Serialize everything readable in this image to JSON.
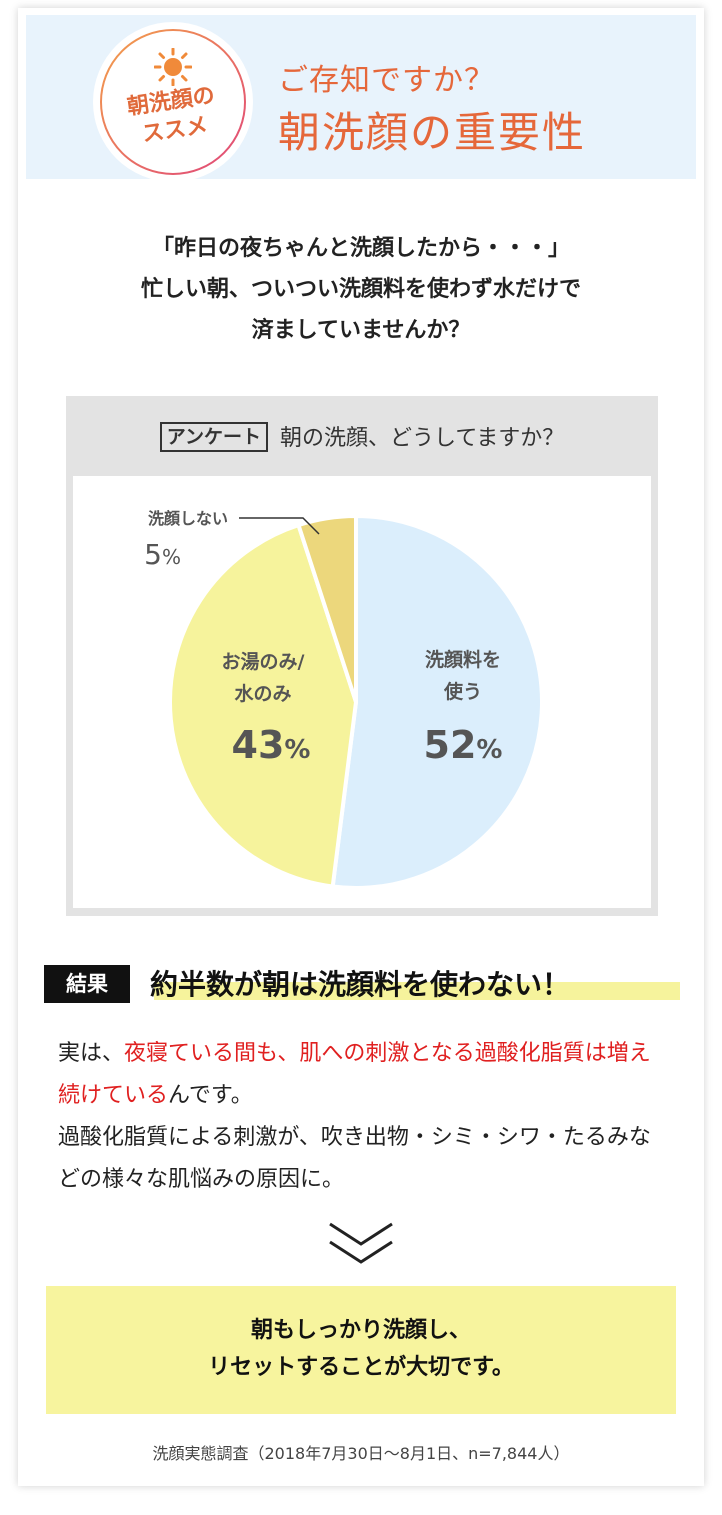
{
  "header": {
    "badge_line1": "朝洗顔の",
    "badge_line2": "ススメ",
    "subheading": "ご存知ですか？",
    "heading": "朝洗顔の重要性",
    "sun_icon": "sun-icon"
  },
  "intro": {
    "line1": "「昨日の夜ちゃんと洗顔したから・・・」",
    "line2": "忙しい朝、ついつい洗顔料を使わず水だけで",
    "line3": "済ましていませんか？"
  },
  "survey": {
    "tag": "アンケート",
    "question": "朝の洗顔、どうしてますか？"
  },
  "chart_data": {
    "type": "pie",
    "title": "",
    "slices": [
      {
        "label": "洗顔料を使う",
        "label_lines": [
          "洗顔料を",
          "使う"
        ],
        "value": 52,
        "value_text": "52",
        "color": "#dbeefc"
      },
      {
        "label": "お湯のみ/水のみ",
        "label_lines": [
          "お湯のみ/",
          "水のみ"
        ],
        "value": 43,
        "value_text": "43",
        "color": "#f6f39c"
      },
      {
        "label": "洗顔しない",
        "label_lines": [
          "洗顔しない"
        ],
        "value": 5,
        "value_text": "5",
        "color": "#ecd77c"
      }
    ],
    "unit": "%"
  },
  "result": {
    "tag": "結果",
    "text": "約半数が朝は洗顔料を使わない！"
  },
  "body": {
    "p1_plain_start": "実は、",
    "p1_red": "夜寝ている間も、肌への刺激となる過酸化脂質は増え続けている",
    "p1_plain_end": "んです。",
    "p2": "過酸化脂質による刺激が、吹き出物・シミ・シワ・たるみなどの様々な肌悩みの原因に。"
  },
  "cta": {
    "line1": "朝もしっかり洗顔し、",
    "line2": "リセットすることが大切です。"
  },
  "source": "洗顔実態調査（2018年7月30日〜8月1日、n=7,844人）",
  "colors": {
    "accent_orange": "#e5673a",
    "header_bg": "#e8f3fc",
    "highlight_yellow": "#f6f39c",
    "emphasis_red": "#e02020"
  }
}
